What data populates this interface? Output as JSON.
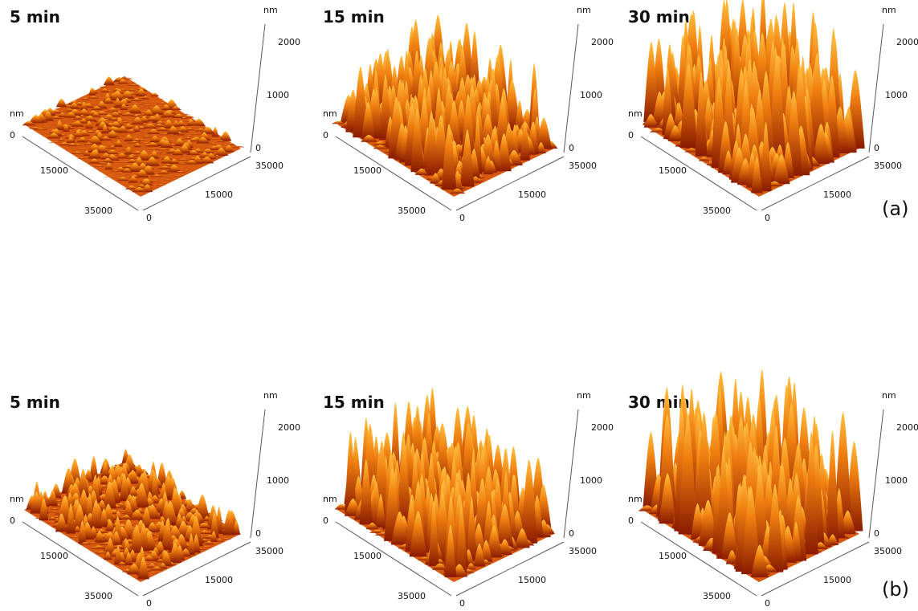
{
  "rows": [
    {
      "label": "(a)",
      "plots": [
        {
          "title": "5 min",
          "z_unit": "nm",
          "z_ticks": [
            "0",
            "1000",
            "2000"
          ],
          "xy_unit": "nm",
          "x_ticks": [
            "0",
            "15000",
            "35000"
          ],
          "y_ticks": [
            "0",
            "15000",
            "35000"
          ]
        },
        {
          "title": "15 min",
          "z_unit": "nm",
          "z_ticks": [
            "0",
            "1000",
            "2000"
          ],
          "xy_unit": "nm",
          "x_ticks": [
            "0",
            "15000",
            "35000"
          ],
          "y_ticks": [
            "0",
            "15000",
            "35000"
          ]
        },
        {
          "title": "30 min",
          "z_unit": "nm",
          "z_ticks": [
            "0",
            "1000",
            "2000"
          ],
          "xy_unit": "nm",
          "x_ticks": [
            "0",
            "15000",
            "35000"
          ],
          "y_ticks": [
            "0",
            "15000",
            "35000"
          ]
        }
      ]
    },
    {
      "label": "(b)",
      "plots": [
        {
          "title": "5 min",
          "z_unit": "nm",
          "z_ticks": [
            "0",
            "1000",
            "2000"
          ],
          "xy_unit": "nm",
          "x_ticks": [
            "0",
            "15000",
            "35000"
          ],
          "y_ticks": [
            "0",
            "15000",
            "35000"
          ]
        },
        {
          "title": "15 min",
          "z_unit": "nm",
          "z_ticks": [
            "0",
            "1000",
            "2000"
          ],
          "xy_unit": "nm",
          "x_ticks": [
            "0",
            "15000",
            "35000"
          ],
          "y_ticks": [
            "0",
            "15000",
            "35000"
          ]
        },
        {
          "title": "30 min",
          "z_unit": "nm",
          "z_ticks": [
            "0",
            "1000",
            "2000"
          ],
          "xy_unit": "nm",
          "x_ticks": [
            "0",
            "15000",
            "35000"
          ],
          "y_ticks": [
            "0",
            "15000",
            "35000"
          ]
        }
      ]
    }
  ]
}
